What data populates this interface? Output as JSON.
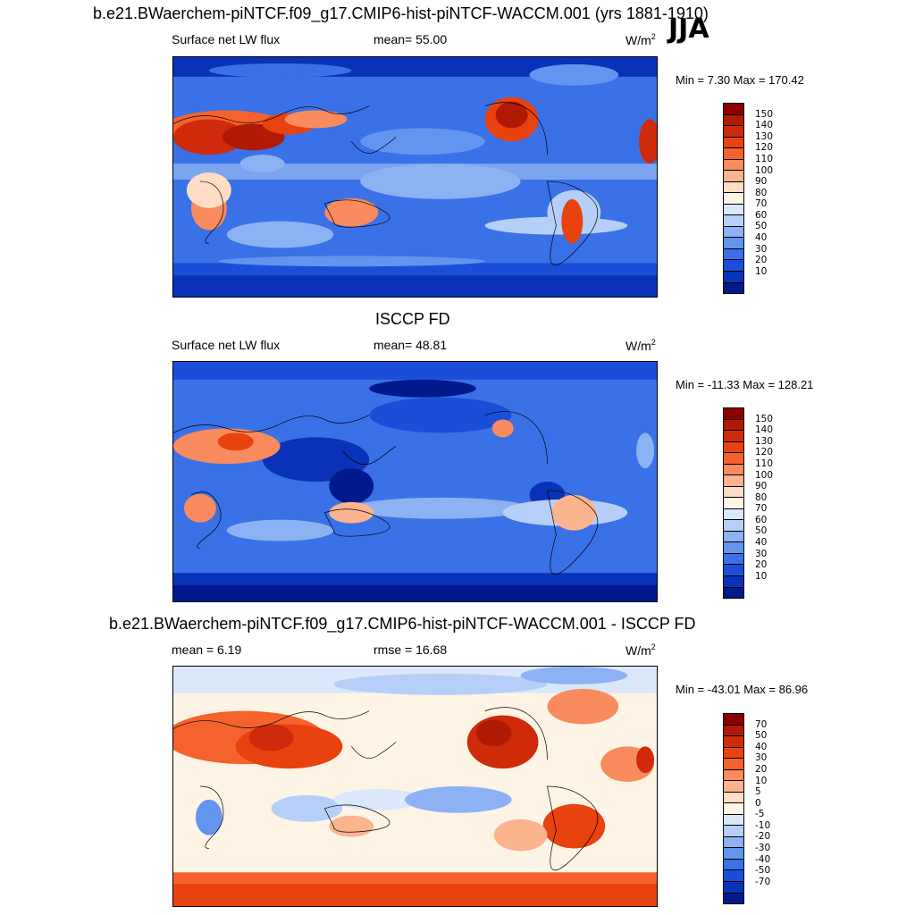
{
  "season": "JJA",
  "panels": [
    {
      "title": "b.e21.BWaerchem-piNTCF.f09_g17.CMIP6-hist-piNTCF-WACCM.001 (yrs 1881-1910)",
      "variable": "Surface net LW flux",
      "stat": "mean=  55.00",
      "units": "W/m",
      "units_sup": "2",
      "minmax": "Min =   7.30 Max = 170.42",
      "colorbar": {
        "labels": [
          "150",
          "140",
          "130",
          "120",
          "110",
          "100",
          "90",
          "80",
          "70",
          "60",
          "50",
          "40",
          "30",
          "20",
          "10"
        ],
        "colors": [
          "#8b0000",
          "#b01a05",
          "#cf2a0a",
          "#e8420f",
          "#f5622d",
          "#f98b5e",
          "#fcb48f",
          "#feddc4",
          "#fdf4e6",
          "#dbe8fb",
          "#b5cff8",
          "#8db2f3",
          "#6394ee",
          "#3a71e6",
          "#1a4ed8",
          "#0a32b8",
          "#001a8c"
        ]
      }
    },
    {
      "title": "ISCCP FD",
      "variable": "Surface net LW flux",
      "stat": "mean=  48.81",
      "units": "W/m",
      "units_sup": "2",
      "minmax": "Min = -11.33 Max = 128.21",
      "colorbar": {
        "labels": [
          "150",
          "140",
          "130",
          "120",
          "110",
          "100",
          "90",
          "80",
          "70",
          "60",
          "50",
          "40",
          "30",
          "20",
          "10"
        ],
        "colors": [
          "#8b0000",
          "#b01a05",
          "#cf2a0a",
          "#e8420f",
          "#f5622d",
          "#f98b5e",
          "#fcb48f",
          "#feddc4",
          "#fdf4e6",
          "#dbe8fb",
          "#b5cff8",
          "#8db2f3",
          "#6394ee",
          "#3a71e6",
          "#1a4ed8",
          "#0a32b8",
          "#001a8c"
        ]
      }
    },
    {
      "title": "b.e21.BWaerchem-piNTCF.f09_g17.CMIP6-hist-piNTCF-WACCM.001 - ISCCP FD",
      "variable": "mean =   6.19",
      "stat": "rmse =  16.68",
      "units": "W/m",
      "units_sup": "2",
      "minmax": "Min = -43.01 Max =  86.96",
      "colorbar": {
        "labels": [
          "70",
          "50",
          "40",
          "30",
          "20",
          "10",
          "5",
          "0",
          "-5",
          "-10",
          "-20",
          "-30",
          "-40",
          "-50",
          "-70"
        ],
        "colors": [
          "#8b0000",
          "#b01a05",
          "#cf2a0a",
          "#e8420f",
          "#f5622d",
          "#f98b5e",
          "#fcb48f",
          "#feddc4",
          "#fdf4e6",
          "#dbe8fb",
          "#b5cff8",
          "#8db2f3",
          "#6394ee",
          "#3a71e6",
          "#1a4ed8",
          "#0a32b8",
          "#001a8c"
        ]
      }
    }
  ]
}
